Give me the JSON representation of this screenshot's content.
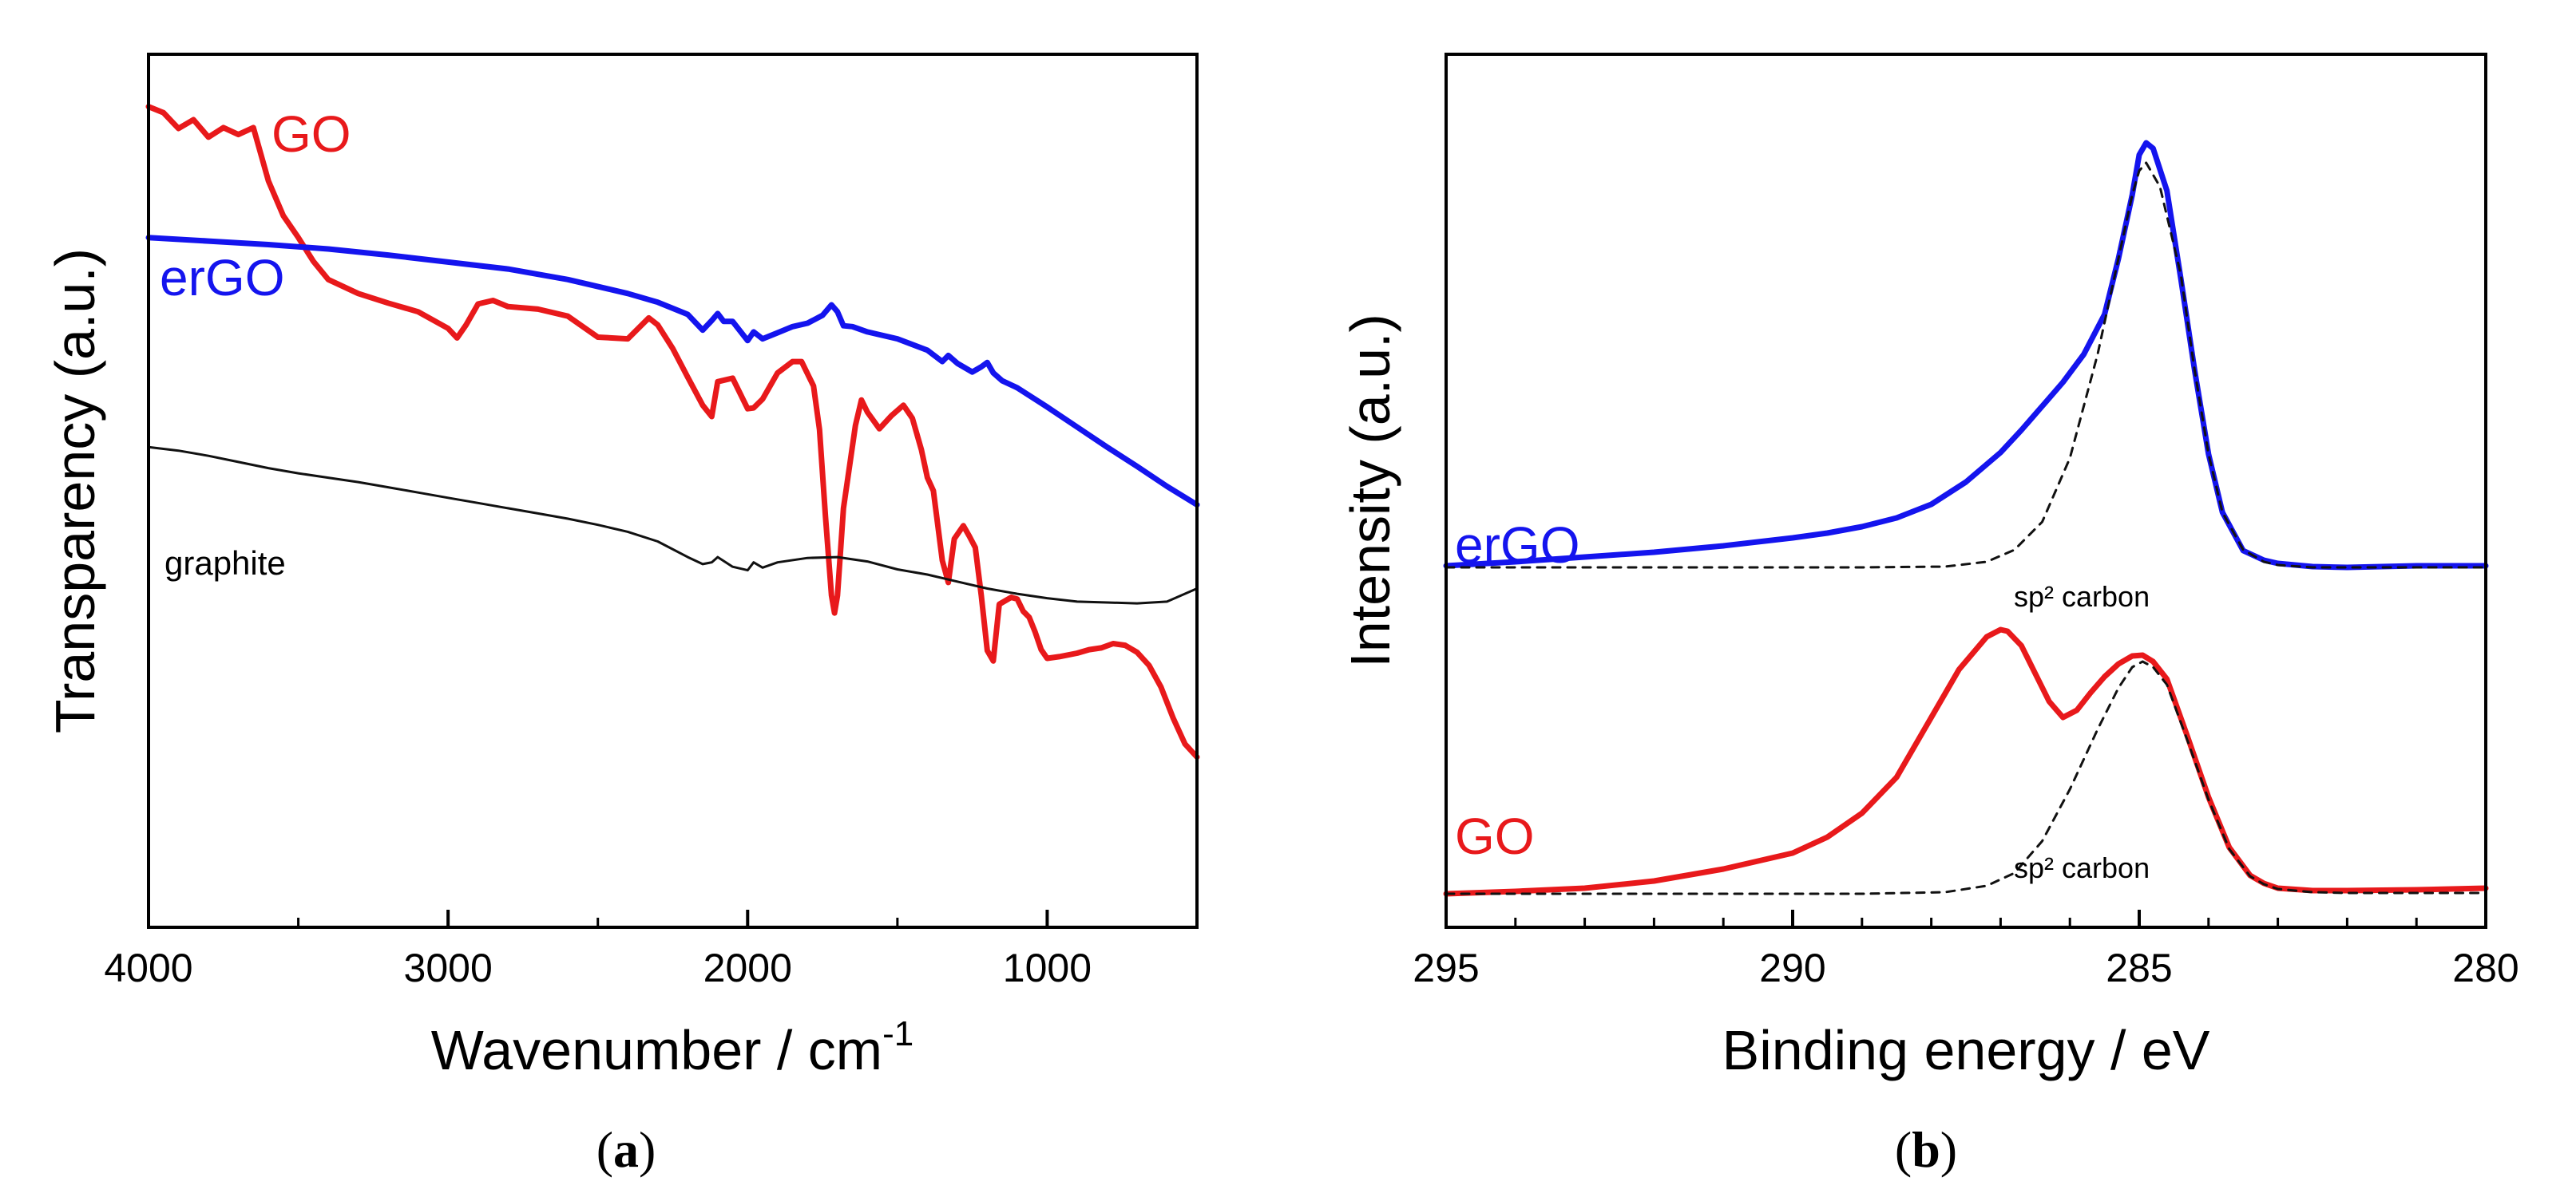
{
  "colors": {
    "red": "#e8191b",
    "blue": "#1414ee",
    "black": "#111111"
  },
  "chart_data": [
    {
      "id": "a",
      "type": "line",
      "caption": "a",
      "xlabel": "Wavenumber / cm",
      "xlabel_sup": "-1",
      "ylabel": "Transparency (a.u.)",
      "xlim": [
        4000,
        500
      ],
      "ylim": [
        0,
        100
      ],
      "xticks": [
        "4000",
        "3000",
        "2000",
        "1000"
      ],
      "xtick_values": [
        4000,
        3000,
        2000,
        1000
      ],
      "series": [
        {
          "name": "GO",
          "color": "red",
          "stroke": 7,
          "x": [
            4000,
            3950,
            3900,
            3850,
            3800,
            3750,
            3700,
            3650,
            3600,
            3550,
            3500,
            3450,
            3400,
            3300,
            3200,
            3100,
            3000,
            2970,
            2940,
            2900,
            2850,
            2800,
            2700,
            2600,
            2500,
            2400,
            2330,
            2300,
            2250,
            2200,
            2150,
            2120,
            2100,
            2050,
            2000,
            1980,
            1950,
            1900,
            1850,
            1820,
            1780,
            1760,
            1740,
            1720,
            1710,
            1700,
            1680,
            1640,
            1620,
            1600,
            1560,
            1520,
            1480,
            1450,
            1420,
            1400,
            1380,
            1350,
            1330,
            1310,
            1280,
            1260,
            1240,
            1220,
            1200,
            1180,
            1160,
            1120,
            1100,
            1080,
            1060,
            1040,
            1020,
            1000,
            960,
            900,
            860,
            820,
            780,
            740,
            700,
            660,
            620,
            580,
            540,
            500
          ],
          "y": [
            94,
            93.3,
            91.5,
            92.5,
            90.5,
            91.6,
            90.8,
            91.6,
            85.5,
            81.5,
            79,
            76.3,
            74.2,
            72.6,
            71.5,
            70.5,
            68.6,
            67.5,
            69,
            71.4,
            71.8,
            71.1,
            70.8,
            70,
            67.6,
            67.4,
            69.8,
            69,
            66.3,
            63,
            59.8,
            58.5,
            62.5,
            62.9,
            59.4,
            59.5,
            60.5,
            63.5,
            64.8,
            64.8,
            62,
            57,
            47,
            38,
            36,
            38,
            48,
            57.5,
            60.4,
            59,
            57.1,
            58.6,
            59.8,
            58.3,
            54.7,
            51.5,
            50,
            42,
            39.5,
            44.5,
            46,
            44.8,
            43.5,
            38,
            31.7,
            30.5,
            37,
            37.8,
            37.6,
            36.2,
            35.5,
            33.8,
            31.8,
            30.8,
            31,
            31.4,
            31.8,
            32,
            32.5,
            32.3,
            31.5,
            30,
            27.5,
            24,
            21,
            19.5
          ]
        },
        {
          "name": "erGO",
          "color": "blue",
          "stroke": 7,
          "x": [
            4000,
            3800,
            3600,
            3400,
            3200,
            3000,
            2800,
            2600,
            2400,
            2300,
            2200,
            2150,
            2120,
            2100,
            2080,
            2050,
            2000,
            1980,
            1950,
            1900,
            1850,
            1800,
            1750,
            1720,
            1700,
            1680,
            1650,
            1600,
            1500,
            1400,
            1350,
            1330,
            1300,
            1250,
            1220,
            1200,
            1180,
            1150,
            1100,
            1000,
            900,
            800,
            700,
            600,
            500
          ],
          "y": [
            79,
            78.6,
            78.2,
            77.7,
            77,
            76.2,
            75.4,
            74.2,
            72.6,
            71.6,
            70.2,
            68.4,
            69.5,
            70.3,
            69.4,
            69.4,
            67.2,
            68.2,
            67.4,
            68.1,
            68.8,
            69.2,
            70.1,
            71.3,
            70.5,
            68.9,
            68.8,
            68.2,
            67.4,
            66.1,
            64.8,
            65.5,
            64.6,
            63.6,
            64.2,
            64.7,
            63.5,
            62.6,
            61.8,
            59.6,
            57.3,
            55,
            52.8,
            50.5,
            48.4
          ]
        },
        {
          "name": "graphite",
          "color": "black",
          "stroke": 3,
          "x": [
            4000,
            3900,
            3800,
            3700,
            3600,
            3500,
            3400,
            3300,
            3200,
            3100,
            3000,
            2900,
            2800,
            2700,
            2600,
            2500,
            2400,
            2300,
            2200,
            2150,
            2120,
            2100,
            2050,
            2000,
            1980,
            1950,
            1900,
            1800,
            1700,
            1600,
            1500,
            1400,
            1300,
            1200,
            1100,
            1000,
            900,
            800,
            700,
            600,
            500
          ],
          "y": [
            55,
            54.6,
            54,
            53.3,
            52.6,
            52,
            51.5,
            51,
            50.4,
            49.8,
            49.2,
            48.6,
            48,
            47.4,
            46.8,
            46.1,
            45.3,
            44.2,
            42.4,
            41.6,
            41.8,
            42.4,
            41.3,
            40.9,
            41.8,
            41.2,
            41.8,
            42.3,
            42.4,
            41.9,
            41,
            40.4,
            39.6,
            38.8,
            38.2,
            37.7,
            37.3,
            37.2,
            37.1,
            37.3,
            38.8
          ]
        }
      ],
      "labels": [
        {
          "series": "GO",
          "text": "GO",
          "size": "big"
        },
        {
          "series": "erGO",
          "text": "erGO",
          "size": "big"
        },
        {
          "series": "graphite",
          "text": "graphite",
          "size": "small"
        }
      ]
    },
    {
      "id": "b",
      "type": "line",
      "caption": "b",
      "xlabel": "Binding energy / eV",
      "ylabel": "Intensity (a.u.)",
      "xlim": [
        295,
        280
      ],
      "ylim": [
        0,
        100
      ],
      "xticks": [
        "295",
        "290",
        "285",
        "280"
      ],
      "xtick_values": [
        295,
        290,
        285,
        280
      ],
      "series": [
        {
          "name": "erGO",
          "color": "blue",
          "stroke": 7,
          "x": [
            295,
            294,
            293,
            292,
            291,
            290,
            289.5,
            289,
            288.5,
            288,
            287.5,
            287,
            286.7,
            286.4,
            286.1,
            285.8,
            285.5,
            285.3,
            285.1,
            285.0,
            284.9,
            284.8,
            284.6,
            284.4,
            284.2,
            284,
            283.8,
            283.5,
            283.2,
            283,
            282.5,
            282,
            281,
            280
          ],
          "y": [
            41.5,
            42,
            42.6,
            43.2,
            44,
            45,
            45.6,
            46.4,
            47.5,
            49.2,
            52,
            55.7,
            58.5,
            61.5,
            64.5,
            68,
            73,
            80,
            88,
            93,
            94.5,
            93.8,
            88.5,
            77.5,
            66,
            55.5,
            48.2,
            43.4,
            42.2,
            41.8,
            41.4,
            41.3,
            41.5,
            41.5
          ]
        },
        {
          "name": "erGO sp2 carbon fit",
          "color": "black",
          "stroke": 3,
          "dashed": true,
          "x": [
            295,
            293,
            291,
            289,
            287.8,
            287.2,
            286.8,
            286.4,
            286.0,
            285.6,
            285.3,
            285.1,
            285.0,
            284.9,
            284.7,
            284.4,
            284.2,
            284.0,
            283.8,
            283.5,
            283.2,
            283,
            282.5,
            282,
            281,
            280
          ],
          "y": [
            41.3,
            41.3,
            41.3,
            41.3,
            41.4,
            42,
            43.5,
            47,
            55,
            68,
            80,
            88,
            91,
            92,
            89,
            78,
            66,
            55.5,
            48.2,
            43.5,
            42,
            41.6,
            41.3,
            41.3,
            41.3,
            41.3
          ]
        },
        {
          "name": "GO",
          "color": "red",
          "stroke": 7,
          "x": [
            295,
            294,
            293,
            292,
            291,
            290,
            289.5,
            289,
            288.5,
            288,
            287.6,
            287.2,
            287.0,
            286.9,
            286.7,
            286.5,
            286.3,
            286.1,
            285.9,
            285.7,
            285.5,
            285.3,
            285.1,
            284.95,
            284.8,
            284.6,
            284.3,
            284,
            283.7,
            283.4,
            283.2,
            283,
            282.5,
            282,
            281,
            280
          ],
          "y": [
            0.4,
            0.7,
            1.1,
            2,
            3.5,
            5.5,
            7.5,
            10.5,
            15,
            22.5,
            28.5,
            32.6,
            33.5,
            33.3,
            31.5,
            28,
            24.5,
            22.5,
            23.4,
            25.6,
            27.6,
            29.2,
            30.2,
            30.3,
            29.5,
            27.3,
            20,
            12.5,
            6.2,
            2.7,
            1.7,
            1.1,
            0.8,
            0.8,
            0.9,
            1.1
          ]
        },
        {
          "name": "GO sp2 carbon fit",
          "color": "black",
          "stroke": 3,
          "dashed": true,
          "x": [
            295,
            293,
            291,
            289,
            287.8,
            287.2,
            286.8,
            286.4,
            286.0,
            285.6,
            285.3,
            285.1,
            284.95,
            284.8,
            284.6,
            284.3,
            284,
            283.7,
            283.4,
            283.2,
            283,
            282.5,
            282,
            281,
            280
          ],
          "y": [
            0.4,
            0.4,
            0.4,
            0.4,
            0.6,
            1.4,
            3,
            7,
            13.5,
            21,
            26.2,
            28.8,
            29.5,
            28.8,
            26.6,
            19.5,
            12.2,
            6,
            2.6,
            1.6,
            1,
            0.6,
            0.5,
            0.5,
            0.5
          ]
        }
      ],
      "labels": [
        {
          "series": "erGO",
          "text": "erGO",
          "size": "big"
        },
        {
          "series": "erGO sp2 carbon fit",
          "text": "sp² carbon",
          "size": "annot"
        },
        {
          "series": "GO",
          "text": "GO",
          "size": "big"
        },
        {
          "series": "GO sp2 carbon fit",
          "text": "sp² carbon",
          "size": "annot"
        }
      ]
    }
  ]
}
